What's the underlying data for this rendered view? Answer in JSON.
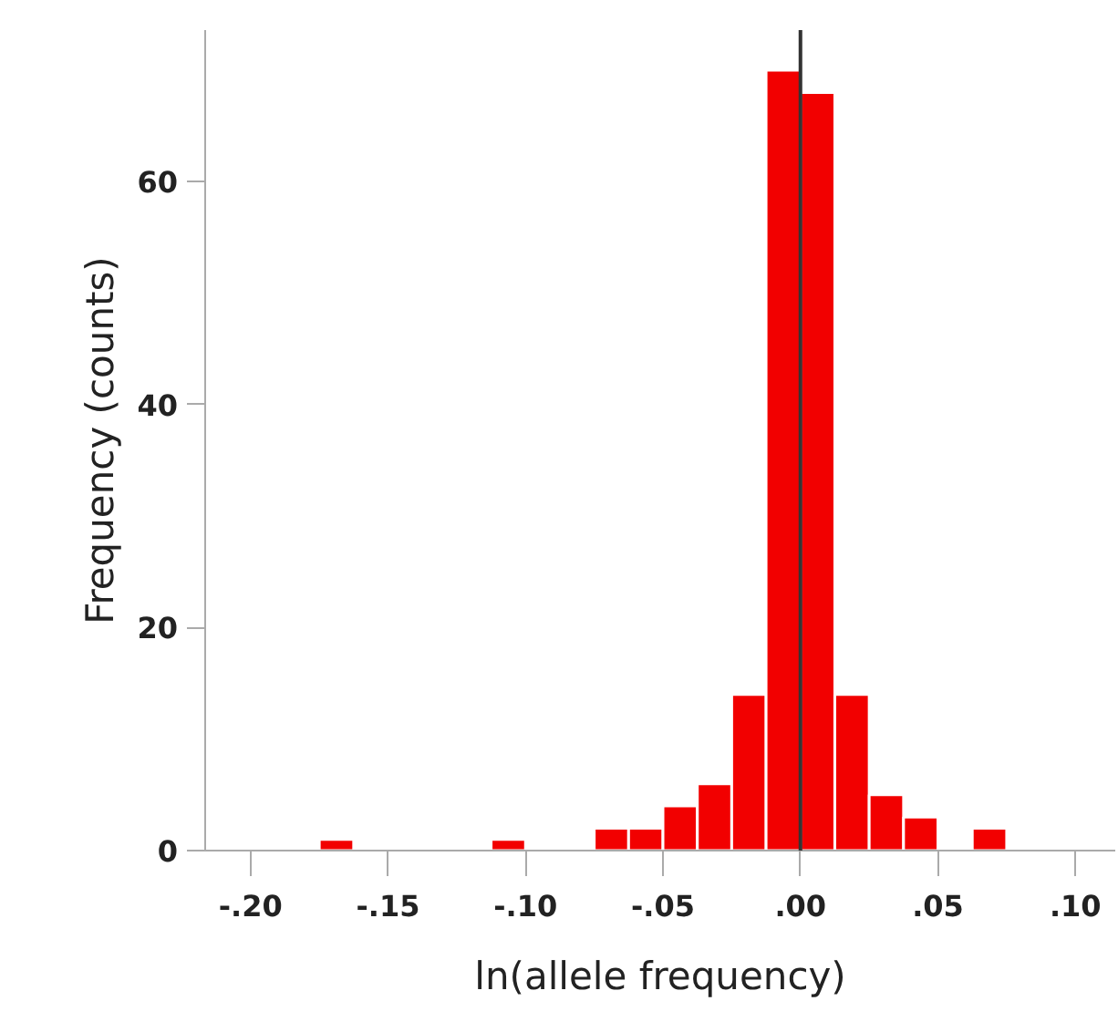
{
  "chart_data": {
    "type": "histogram",
    "xlabel": "ln(allele frequency)",
    "ylabel": "Frequency (counts)",
    "bins": [
      -0.175,
      -0.1625,
      -0.15,
      -0.1375,
      -0.125,
      -0.1125,
      -0.1,
      -0.0875,
      -0.075,
      -0.0625,
      -0.05,
      -0.0375,
      -0.025,
      -0.0125,
      0,
      0.0125,
      0.025,
      0.0375,
      0.05,
      0.0625,
      0.075
    ],
    "values": [
      1,
      0,
      0,
      0,
      0,
      1,
      0,
      0,
      2,
      2,
      4,
      6,
      14,
      70,
      68,
      14,
      5,
      3,
      0,
      2
    ],
    "color": "#f20000",
    "xlim": [
      -0.2165,
      0.1145
    ],
    "ylim": [
      0,
      73.6
    ],
    "xticks": [
      {
        "value": -0.2,
        "label": "-.20"
      },
      {
        "value": -0.15,
        "label": "-.15"
      },
      {
        "value": -0.1,
        "label": "-.10"
      },
      {
        "value": -0.05,
        "label": "-.05"
      },
      {
        "value": 0,
        "label": ".00"
      },
      {
        "value": 0.05,
        "label": ".05"
      },
      {
        "value": 0.1,
        "label": ".10"
      }
    ],
    "yticks": [
      0,
      20,
      40,
      60
    ],
    "ref_lines": [
      {
        "axis": "x",
        "value": 0,
        "color": "#333333"
      }
    ],
    "grid": false
  }
}
